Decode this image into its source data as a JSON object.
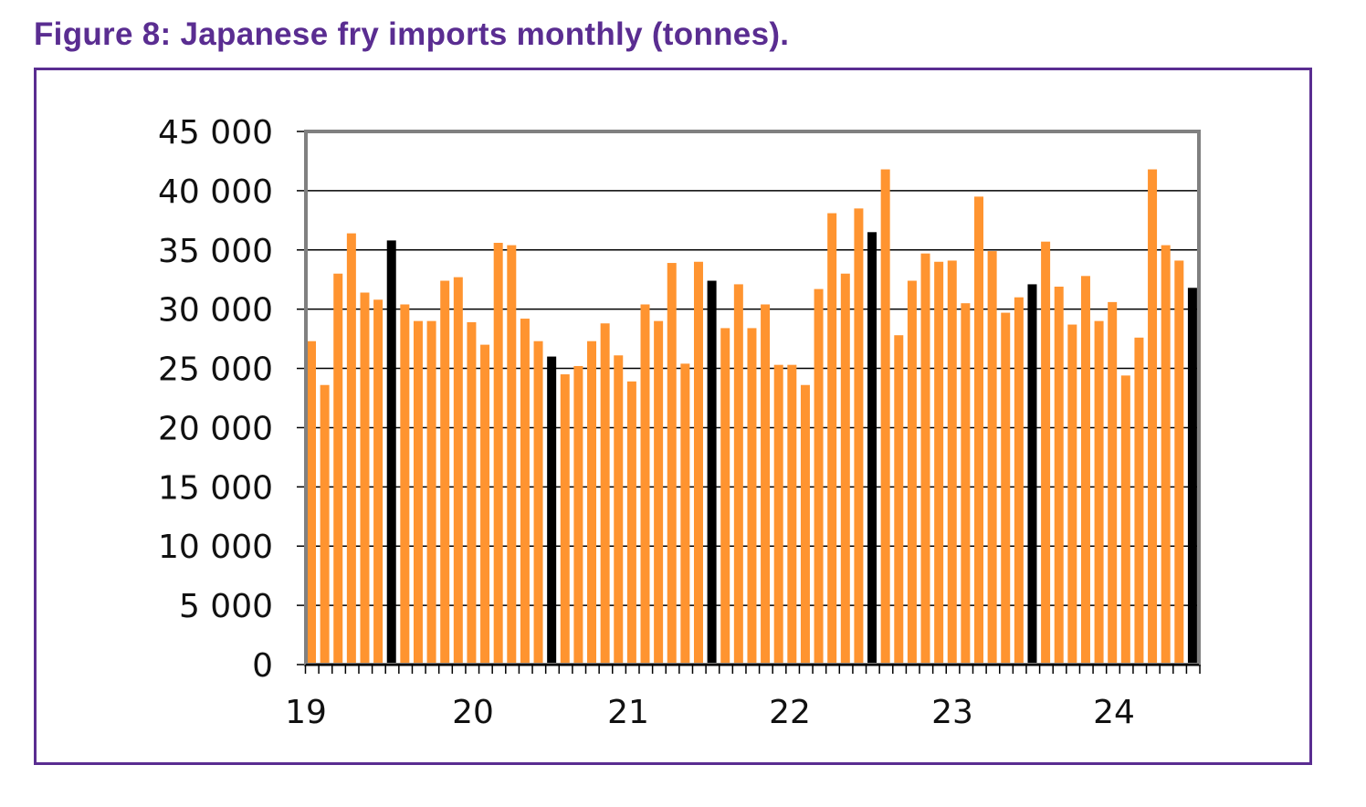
{
  "title": "Figure 8: Japanese fry imports monthly (tonnes).",
  "chart_data": {
    "type": "bar",
    "title": "Figure 8: Japanese fry imports monthly (tonnes).",
    "xlabel": "",
    "ylabel": "",
    "ylim": [
      0,
      45000
    ],
    "yticks": [
      "0",
      "5 000",
      "10 000",
      "15 000",
      "20 000",
      "25 000",
      "30 000",
      "35 000",
      "40 000",
      "45 000"
    ],
    "xtick_labels": [
      "19",
      "20",
      "21",
      "22",
      "23",
      "24"
    ],
    "grid": true,
    "colors": {
      "bar": "#ff9430",
      "highlight": "#000000",
      "axis": "#808080"
    },
    "highlight_every": "July of each year (black bar)",
    "values": [
      27300,
      23600,
      33000,
      36400,
      31400,
      30800,
      35800,
      30400,
      29000,
      29000,
      32400,
      32700,
      28900,
      27000,
      35600,
      35400,
      29200,
      27300,
      26000,
      24500,
      25200,
      27300,
      28800,
      26100,
      23900,
      30400,
      29000,
      33900,
      25400,
      34000,
      32400,
      28400,
      32100,
      28400,
      30400,
      25300,
      25300,
      23600,
      31700,
      38100,
      33000,
      38500,
      36500,
      41800,
      27800,
      32400,
      34700,
      34000,
      34100,
      30500,
      39500,
      34900,
      29700,
      31000,
      32100,
      35700,
      31900,
      28700,
      32800,
      29000,
      30600,
      24400,
      27600,
      41800,
      35400,
      34100,
      31800
    ]
  }
}
